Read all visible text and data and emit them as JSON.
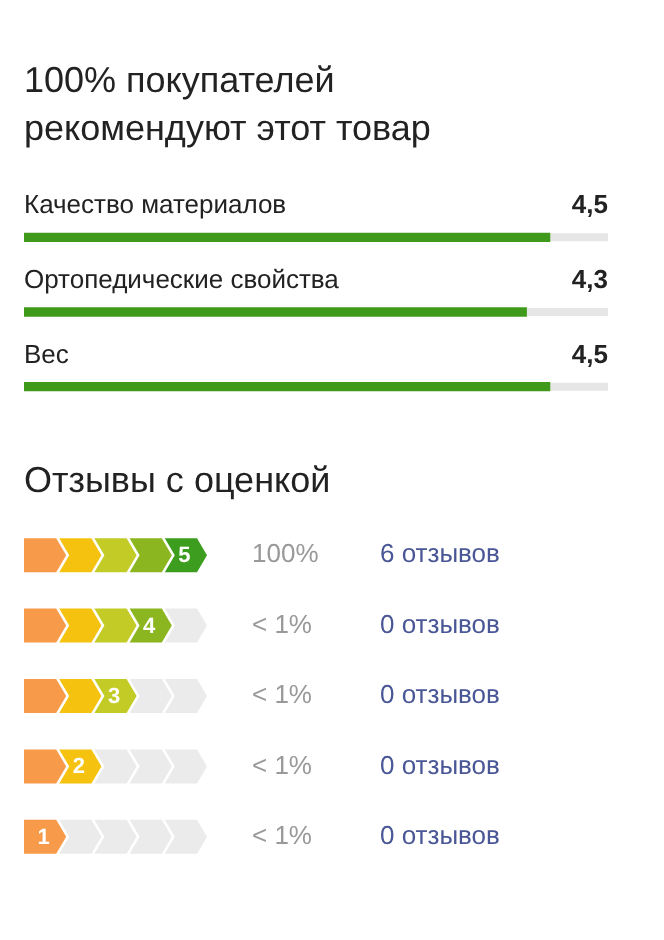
{
  "chart_data": [
    {
      "type": "bar",
      "orientation": "horizontal",
      "title": "100% покупателей рекомендуют этот товар",
      "categories": [
        "Качество материалов",
        "Ортопедические свойства",
        "Вес"
      ],
      "values": [
        4.5,
        4.3,
        4.5
      ],
      "value_labels": [
        "4,5",
        "4,3",
        "4,5"
      ],
      "color": "#3f9a1c",
      "xlim": [
        0,
        5
      ],
      "tick_labels": false
    },
    {
      "type": "other",
      "title": "Отзывы с оценкой",
      "categories": [
        "5",
        "4",
        "3",
        "2",
        "1"
      ],
      "values": [
        6,
        0,
        0,
        0,
        0
      ],
      "value_labels": [
        "6 отзывов",
        "0 отзывов",
        "0 отзывов",
        "0 отзывов",
        "0 отзывов"
      ],
      "annotations": [
        "100%",
        "< 1%",
        "< 1%",
        "< 1%",
        "< 1%"
      ],
      "colors": [
        "#3c9d1e",
        "#8bb61f",
        "#c3cc26",
        "#f5c30f",
        "#f79a4a"
      ]
    }
  ]
}
